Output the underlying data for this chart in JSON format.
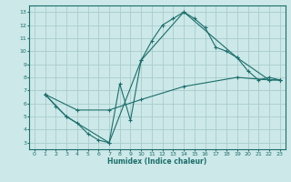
{
  "xlabel": "Humidex (Indice chaleur)",
  "bg_color": "#cce8e8",
  "grid_color": "#aacccc",
  "line_color": "#1a6e6a",
  "xlim": [
    -0.5,
    23.5
  ],
  "ylim": [
    2.5,
    13.5
  ],
  "xticks": [
    0,
    1,
    2,
    3,
    4,
    5,
    6,
    7,
    8,
    9,
    10,
    11,
    12,
    13,
    14,
    15,
    16,
    17,
    18,
    19,
    20,
    21,
    22,
    23
  ],
  "yticks": [
    3,
    4,
    5,
    6,
    7,
    8,
    9,
    10,
    11,
    12,
    13
  ],
  "line1_x": [
    1,
    2,
    3,
    4,
    5,
    6,
    7,
    8,
    9,
    10,
    11,
    12,
    13,
    14,
    15,
    16,
    17,
    18,
    19,
    20,
    21,
    22,
    23
  ],
  "line1_y": [
    6.7,
    5.8,
    5.0,
    4.5,
    3.7,
    3.2,
    3.0,
    7.5,
    4.7,
    9.3,
    10.8,
    12.0,
    12.5,
    13.0,
    12.5,
    11.8,
    10.3,
    10.0,
    9.5,
    8.5,
    7.8,
    8.0,
    7.8
  ],
  "line2_x": [
    1,
    3,
    7,
    10,
    14,
    19,
    22,
    23
  ],
  "line2_y": [
    6.7,
    5.0,
    3.0,
    9.3,
    13.0,
    9.5,
    7.8,
    7.8
  ],
  "line3_x": [
    1,
    4,
    7,
    10,
    14,
    19,
    22,
    23
  ],
  "line3_y": [
    6.7,
    5.5,
    5.5,
    6.3,
    7.3,
    8.0,
    7.8,
    7.8
  ]
}
